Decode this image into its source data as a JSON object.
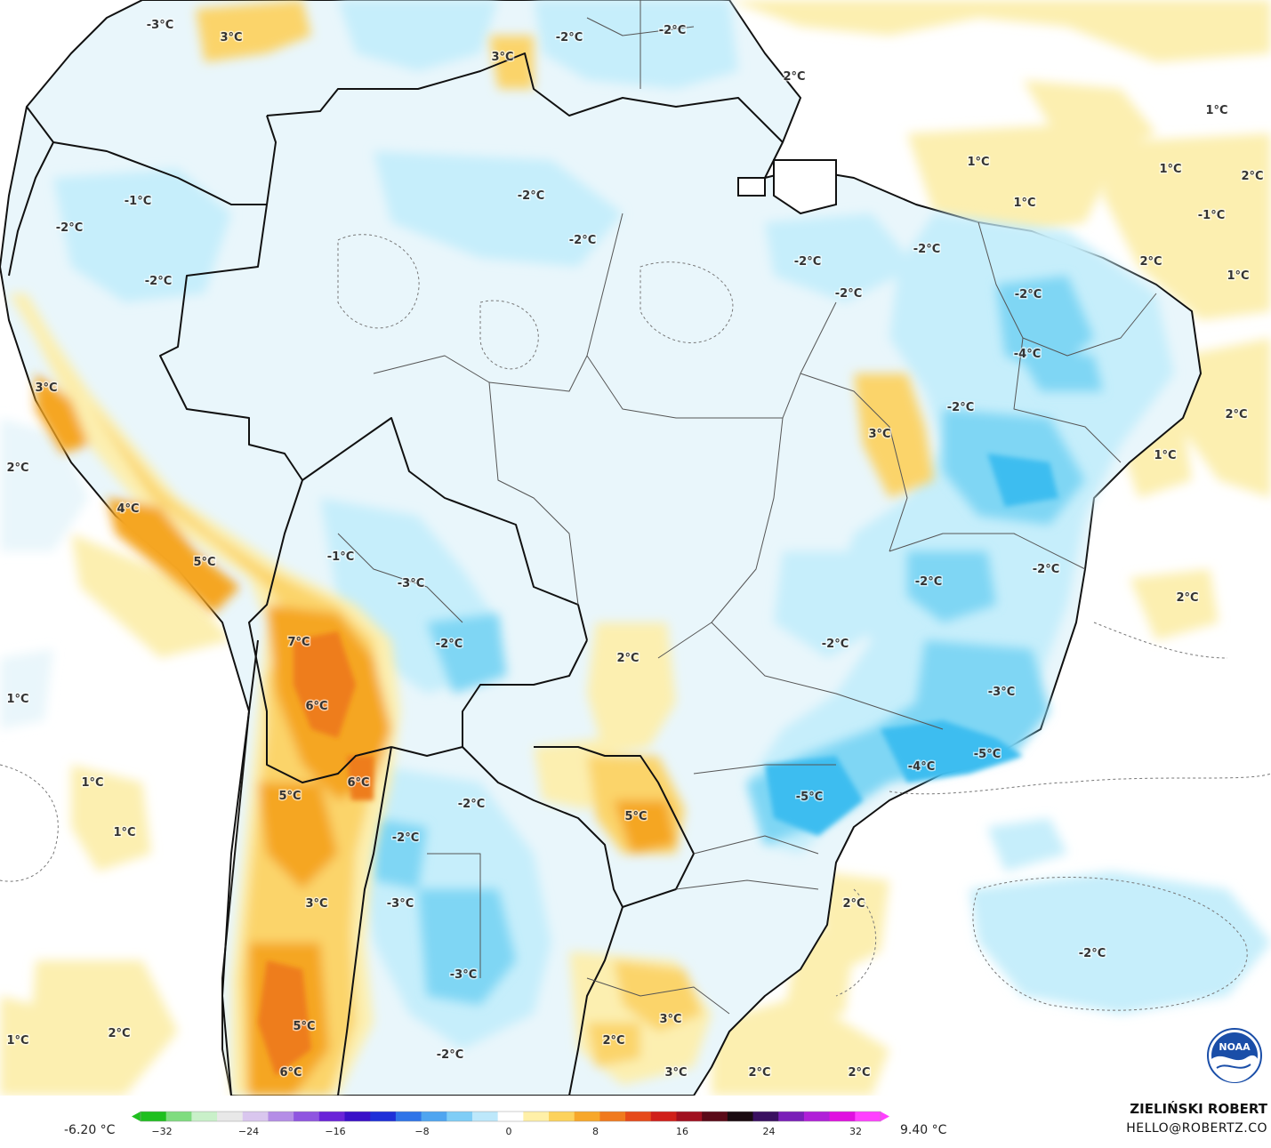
{
  "colors": {
    "ocean": "#ffffff",
    "land_base": "#e9f6fb",
    "cool_light": "#c6eefb",
    "cool_mid": "#7fd6f4",
    "cool_strong": "#3cbdf0",
    "warm_light": "#fcefb0",
    "warm_mid": "#fbd46a",
    "warm_strong": "#f5a623",
    "warm_hot": "#ee7d1a",
    "border": "#111111"
  },
  "map_labels": [
    "-3°C",
    "3°C",
    "3°C",
    "-2°C",
    "-2°C",
    "2°C",
    "1°C",
    "1°C",
    "1°C",
    "1°C",
    "2°C",
    "-1°C",
    "-1°C",
    "-2°C",
    "-2°C",
    "-2°C",
    "2°C",
    "1°C",
    "-2°C",
    "-2°C",
    "-2°C",
    "-2°C",
    "-2°C",
    "1°C",
    "2°C",
    "3°C",
    "-4°C",
    "3°C",
    "4°C",
    "2°C",
    "5°C",
    "-1°C",
    "-2°C",
    "-3°C",
    "-2°C",
    "-2°C",
    "-2°C",
    "7°C",
    "2°C",
    "-2°C",
    "6°C",
    "1°C",
    "-3°C",
    "6°C",
    "5°C",
    "-5°C",
    "-4°C",
    "-5°C",
    "5°C",
    "1°C",
    "-2°C",
    "1°C",
    "-2°C",
    "2°C",
    "3°C",
    "-3°C",
    "-2°C",
    "-3°C",
    "1°C",
    "2°C",
    "3°C",
    "5°C",
    "2°C",
    "-2°C",
    "2°C",
    "6°C",
    "3°C",
    "2°C",
    "2°C"
  ],
  "legend": {
    "min_label": "-6.20 °C",
    "max_label": "9.40 °C",
    "ticks": [
      "−32",
      "−24",
      "−16",
      "−8",
      "0",
      "8",
      "16",
      "24",
      "32"
    ],
    "colors": [
      "#1fbf1f",
      "#7fdc7f",
      "#c9f0c9",
      "#e8e8e8",
      "#d9c6ee",
      "#b48de6",
      "#8f55e0",
      "#6a24d8",
      "#3a10c8",
      "#1e30d8",
      "#2f74e8",
      "#4fa5f0",
      "#7fcdf6",
      "#bde8fb",
      "#ffffff",
      "#fff0a8",
      "#fcd25c",
      "#f7a72a",
      "#f07a1e",
      "#e64a1a",
      "#d0201a",
      "#a01020",
      "#5a0a18",
      "#1a0a10",
      "#3a1060",
      "#7a20b8",
      "#b020d8",
      "#e010e0",
      "#ff40ff"
    ]
  },
  "credit": {
    "name": "ZIELIŃSKI ROBERT",
    "email": "HELLO@ROBERTZ.CO"
  },
  "logo": {
    "text": "NOAA"
  }
}
